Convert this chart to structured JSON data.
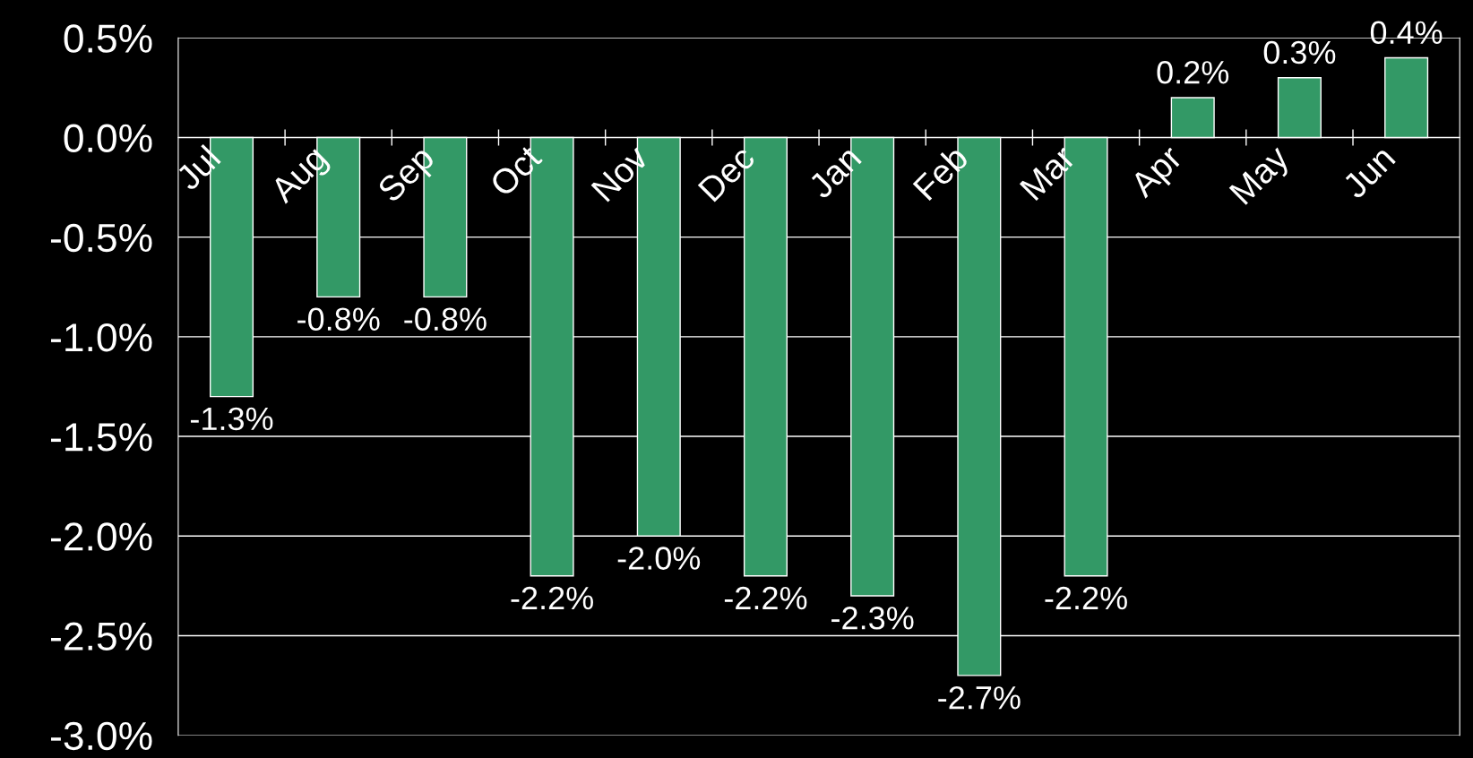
{
  "chart_data": {
    "type": "bar",
    "categories": [
      "Jul",
      "Aug",
      "Sep",
      "Oct",
      "Nov",
      "Dec",
      "Jan",
      "Feb",
      "Mar",
      "Apr",
      "May",
      "Jun"
    ],
    "values": [
      -1.3,
      -0.8,
      -0.8,
      -2.2,
      -2.0,
      -2.2,
      -2.3,
      -2.7,
      -2.2,
      0.2,
      0.3,
      0.4
    ],
    "value_labels": [
      "-1.3%",
      "-0.8%",
      "-0.8%",
      "-2.2%",
      "-2.0%",
      "-2.2%",
      "-2.3%",
      "-2.7%",
      "-2.2%",
      "0.2%",
      "0.3%",
      "0.4%"
    ],
    "color": "#339966",
    "ylim": [
      -3.0,
      0.5
    ],
    "yticks": [
      {
        "value": -3.0,
        "label": "-3.0%"
      },
      {
        "value": -2.5,
        "label": "-2.5%"
      },
      {
        "value": -2.0,
        "label": "-2.0%"
      },
      {
        "value": -1.5,
        "label": "-1.5%"
      },
      {
        "value": -1.0,
        "label": "-1.0%"
      },
      {
        "value": -0.5,
        "label": "-0.5%"
      },
      {
        "value": 0.0,
        "label": "0.0%"
      },
      {
        "value": 0.5,
        "label": "0.5%"
      }
    ],
    "grid": "y"
  }
}
